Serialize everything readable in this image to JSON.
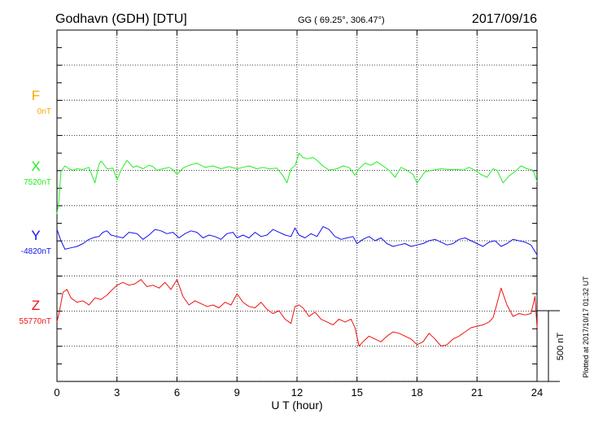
{
  "header": {
    "station": "Godhavn (GDH)  [DTU]",
    "coords": "GG ( 69.25°, 306.47°)",
    "date": "2017/09/16"
  },
  "side_note": "Plotted at 2017/10/17 01:32 UT",
  "scale_bar": {
    "label": "500 nT",
    "value_nT": 500
  },
  "chart_data": {
    "type": "line",
    "title": "Godhavn (GDH)  [DTU]",
    "xlabel": "U T (hour)",
    "xlim": [
      0,
      24
    ],
    "xticks": [
      0,
      3,
      6,
      9,
      12,
      15,
      18,
      21,
      24
    ],
    "xtick_labels": [
      "0",
      "3",
      "6",
      "9",
      "12",
      "15",
      "18",
      "21",
      "24"
    ],
    "grid": true,
    "y_units": "nT",
    "series": [
      {
        "name": "F",
        "color": "#f5a800",
        "baseline_label": "0nT",
        "baseline_nT": 0,
        "t": [],
        "v": []
      },
      {
        "name": "X",
        "color": "#22ee22",
        "baseline_label": "7520nT",
        "baseline_nT": 7520,
        "t": [
          0.0,
          0.1,
          0.2,
          0.4,
          0.6,
          0.8,
          1.0,
          1.3,
          1.6,
          1.9,
          2.1,
          2.2,
          2.3,
          2.5,
          2.8,
          3.0,
          3.2,
          3.5,
          3.8,
          4.0,
          4.3,
          4.6,
          4.8,
          5.0,
          5.3,
          5.6,
          5.8,
          6.0,
          6.3,
          6.6,
          7.0,
          7.4,
          7.8,
          8.2,
          8.6,
          9.0,
          9.3,
          9.6,
          10.0,
          10.3,
          10.6,
          11.0,
          11.3,
          11.5,
          11.7,
          11.9,
          12.1,
          12.3,
          12.5,
          12.8,
          13.0,
          13.3,
          13.6,
          14.0,
          14.3,
          14.6,
          14.9,
          15.1,
          15.4,
          15.7,
          16.0,
          16.3,
          16.6,
          16.9,
          17.2,
          17.5,
          17.8,
          18.0,
          18.4,
          18.8,
          19.2,
          19.6,
          20.0,
          20.3,
          20.6,
          20.9,
          21.2,
          21.5,
          21.8,
          22.0,
          22.3,
          22.6,
          22.9,
          23.2,
          23.5,
          23.8,
          24.0
        ],
        "v": [
          -300,
          -200,
          0,
          40,
          20,
          10,
          20,
          15,
          30,
          -80,
          50,
          75,
          60,
          20,
          25,
          -60,
          10,
          80,
          30,
          40,
          20,
          45,
          35,
          10,
          20,
          30,
          15,
          -20,
          25,
          45,
          60,
          30,
          40,
          20,
          35,
          20,
          30,
          40,
          20,
          30,
          20,
          25,
          -30,
          -80,
          20,
          40,
          130,
          100,
          90,
          100,
          80,
          40,
          10,
          20,
          40,
          30,
          -25,
          20,
          60,
          45,
          70,
          40,
          10,
          -40,
          30,
          10,
          -20,
          -80,
          0,
          10,
          20,
          15,
          15,
          10,
          30,
          10,
          -20,
          -40,
          20,
          10,
          -80,
          -30,
          0,
          40,
          20,
          10,
          -70
        ]
      },
      {
        "name": "Y",
        "color": "#1010ee",
        "baseline_label": "-4820nT",
        "baseline_nT": -4820,
        "t": [
          0.0,
          0.2,
          0.4,
          0.7,
          1.0,
          1.3,
          1.6,
          1.9,
          2.1,
          2.3,
          2.5,
          2.7,
          3.0,
          3.3,
          3.6,
          4.0,
          4.3,
          4.6,
          4.9,
          5.2,
          5.5,
          5.8,
          6.1,
          6.4,
          6.7,
          7.0,
          7.3,
          7.6,
          7.9,
          8.2,
          8.5,
          8.8,
          9.0,
          9.3,
          9.6,
          9.9,
          10.2,
          10.5,
          10.8,
          11.1,
          11.4,
          11.7,
          11.9,
          12.1,
          12.4,
          12.7,
          13.0,
          13.3,
          13.6,
          13.9,
          14.2,
          14.5,
          14.8,
          15.0,
          15.3,
          15.6,
          15.9,
          16.2,
          16.5,
          16.8,
          17.1,
          17.4,
          17.7,
          18.0,
          18.3,
          18.6,
          18.9,
          19.2,
          19.5,
          19.8,
          20.1,
          20.4,
          20.7,
          21.0,
          21.3,
          21.6,
          21.9,
          22.2,
          22.5,
          22.8,
          23.1,
          23.4,
          23.7,
          24.0
        ],
        "v": [
          80,
          0,
          -60,
          -50,
          -40,
          -20,
          10,
          25,
          30,
          60,
          70,
          40,
          30,
          20,
          60,
          50,
          10,
          40,
          80,
          70,
          50,
          60,
          20,
          50,
          70,
          60,
          20,
          40,
          30,
          10,
          50,
          60,
          20,
          40,
          20,
          60,
          30,
          40,
          80,
          60,
          40,
          30,
          90,
          40,
          20,
          50,
          30,
          100,
          80,
          30,
          10,
          20,
          30,
          -20,
          10,
          30,
          0,
          20,
          -20,
          -40,
          -30,
          -20,
          -40,
          -30,
          -20,
          0,
          10,
          -10,
          -30,
          -20,
          10,
          20,
          0,
          -20,
          -40,
          -10,
          0,
          -40,
          -20,
          10,
          0,
          -10,
          -30,
          -100
        ]
      },
      {
        "name": "Z",
        "color": "#ee1010",
        "baseline_label": "55770nT",
        "baseline_nT": 55770,
        "t": [
          0.0,
          0.1,
          0.3,
          0.5,
          0.7,
          1.0,
          1.3,
          1.6,
          1.9,
          2.2,
          2.5,
          2.7,
          3.0,
          3.3,
          3.6,
          3.9,
          4.2,
          4.5,
          4.8,
          5.1,
          5.4,
          5.7,
          6.0,
          6.3,
          6.6,
          6.9,
          7.2,
          7.5,
          7.8,
          8.1,
          8.4,
          8.7,
          9.0,
          9.3,
          9.6,
          9.9,
          10.2,
          10.5,
          10.8,
          11.1,
          11.4,
          11.7,
          11.9,
          12.1,
          12.3,
          12.6,
          12.9,
          13.2,
          13.5,
          13.8,
          14.1,
          14.4,
          14.7,
          14.9,
          15.1,
          15.3,
          15.6,
          15.9,
          16.2,
          16.5,
          16.8,
          17.1,
          17.4,
          17.7,
          18.0,
          18.3,
          18.6,
          18.9,
          19.2,
          19.5,
          19.8,
          20.1,
          20.4,
          20.7,
          21.0,
          21.3,
          21.6,
          21.8,
          22.0,
          22.2,
          22.5,
          22.8,
          23.1,
          23.4,
          23.7,
          23.9,
          24.0
        ],
        "v": [
          -80,
          -20,
          130,
          150,
          90,
          60,
          70,
          40,
          90,
          80,
          110,
          140,
          180,
          200,
          180,
          190,
          220,
          170,
          180,
          160,
          200,
          150,
          220,
          100,
          40,
          70,
          50,
          30,
          40,
          20,
          60,
          40,
          120,
          60,
          30,
          20,
          60,
          10,
          -20,
          0,
          -60,
          -90,
          30,
          40,
          20,
          -40,
          -10,
          -60,
          -80,
          -100,
          -60,
          -80,
          -60,
          -120,
          -250,
          -220,
          -180,
          -200,
          -220,
          -180,
          -150,
          -160,
          -180,
          -200,
          -240,
          -220,
          -160,
          -200,
          -250,
          -240,
          -200,
          -180,
          -150,
          -120,
          -110,
          -100,
          -80,
          -50,
          50,
          160,
          40,
          -40,
          -20,
          -30,
          -20,
          100,
          -120
        ]
      }
    ]
  }
}
